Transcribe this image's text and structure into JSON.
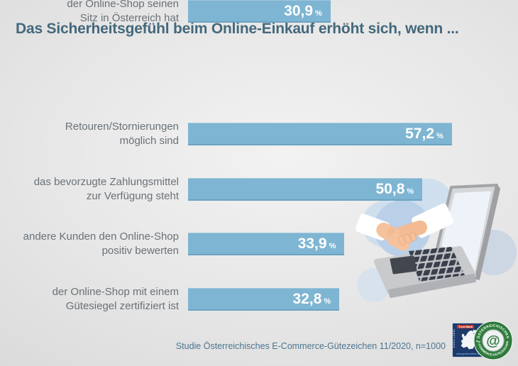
{
  "title": "Das Sicherheitsgefühl beim Online-Einkauf erhöht sich, wenn ...",
  "chart_data": {
    "type": "bar",
    "orientation": "horizontal",
    "title": "Das Sicherheitsgefühl beim Online-Einkauf erhöht sich, wenn ...",
    "categories": [
      "Retouren/Stornierungen möglich sind",
      "das bevorzugte Zahlungsmittel zur Verfügung steht",
      "andere Kunden den Online-Shop positiv bewerten",
      "der Online-Shop mit einem Gütesiegel zertifiziert ist",
      "der Online-Shop seinen Sitz in Österreich hat"
    ],
    "values": [
      57.2,
      50.8,
      33.9,
      32.8,
      30.9
    ],
    "unit": "%",
    "xlim": [
      0,
      62
    ],
    "grid": false,
    "legend": "none",
    "value_labels_inside_bars": true,
    "bar_color": "#7eb5d2",
    "source_note": "Studie Österreichisches E-Commerce-Gütezeichen 11/2020, n=1000"
  },
  "rows": [
    {
      "label": "Retouren/Stornierungen\nmöglich sind",
      "value_label": "57,2",
      "unit": "%"
    },
    {
      "label": "das bevorzugte Zahlungsmittel\nzur Verfügung steht",
      "value_label": "50,8",
      "unit": "%"
    },
    {
      "label": "andere Kunden den Online-Shop\npositiv bewerten",
      "value_label": "33,9",
      "unit": "%"
    },
    {
      "label": "der Online-Shop mit einem\nGütesiegel zertifiziert ist",
      "value_label": "32,8",
      "unit": "%"
    },
    {
      "label": "der Online-Shop seinen\nSitz in Österreich hat",
      "value_label": "30,9",
      "unit": "%"
    }
  ],
  "footer": {
    "source": "Studie Österreichisches E-Commerce-Gütezeichen 11/2020, n=1000"
  },
  "logo": {
    "trust_mark_label": "Trust Mark",
    "vertical_label": "EURO-LABEL",
    "website": "www.guetezeichen.at",
    "seal_text_top": "ÖSTERREICHISCHES",
    "seal_text_bottom": "E-COMMERCE-GÜTEZEICHEN",
    "seal_symbol": "@",
    "seal_separator": "★"
  },
  "colors": {
    "bar": "#7eb5d2",
    "title": "#44687c",
    "label": "#6a7177",
    "value_text": "#ffffff",
    "footer": "#4c7590",
    "seal_green": "#2f7e3c",
    "logo_navy": "#1e3a6c",
    "illustration_blue_light": "#cfdfee",
    "illustration_blue_mid": "#b9d0e8"
  }
}
